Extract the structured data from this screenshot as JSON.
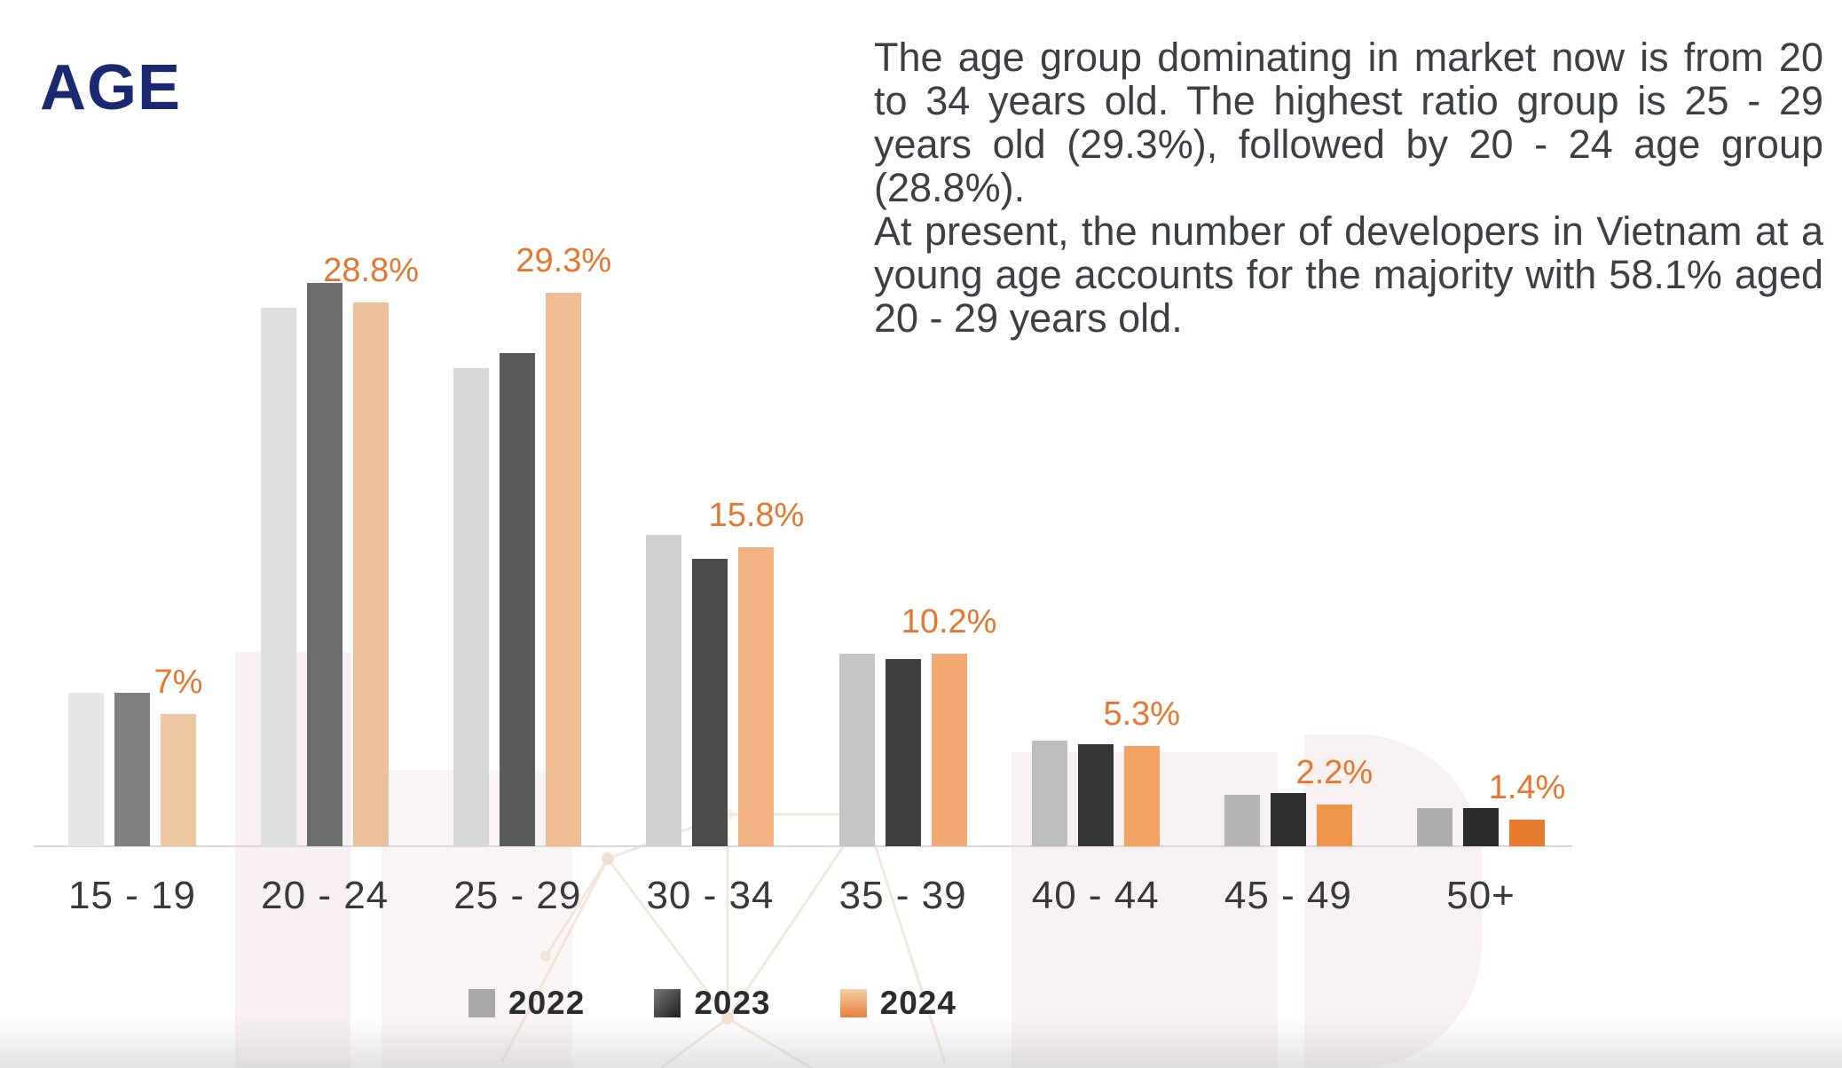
{
  "page": {
    "title": "AGE"
  },
  "description": {
    "para1": "The age group dominating in market now is from 20 to 34 years old. The highest ratio group is 25 - 29 years old (29.3%), followed by 20 - 24 age group (28.8%).",
    "para2": "At present, the number of developers in Vietnam at a young age accounts for the majority with 58.1% aged 20 - 29 years old."
  },
  "chart_data": {
    "type": "bar",
    "title": "AGE",
    "xlabel": "",
    "ylabel": "",
    "ylim": [
      0,
      32
    ],
    "grid": false,
    "legend_position": "bottom",
    "value_label_color": "#e8762c",
    "axis_label_color": "#37393c",
    "axis_line_color": "#d8d8da",
    "categories": [
      "15 - 19",
      "20 - 24",
      "25 - 29",
      "30 - 34",
      "35 - 39",
      "40 - 44",
      "45 - 49",
      "50+"
    ],
    "series": [
      {
        "name": "2022",
        "values": [
          8.1,
          28.5,
          25.3,
          16.5,
          10.2,
          5.6,
          2.7,
          2.0
        ],
        "colors": [
          "#e4e6e8",
          "#dcdee0",
          "#d5d7d9",
          "#cfd0d2",
          "#c4c5c7",
          "#bcbdbf",
          "#b5b5b7",
          "#aeaeb0"
        ]
      },
      {
        "name": "2023",
        "values": [
          8.1,
          29.8,
          26.1,
          15.2,
          9.9,
          5.4,
          2.8,
          2.0
        ],
        "colors": [
          "#7f8082",
          "#6b6c6e",
          "#5a5b5d",
          "#4a4b4d",
          "#3e3f41",
          "#353638",
          "#2e2f31",
          "#2a2b2d"
        ]
      },
      {
        "name": "2024",
        "values": [
          7.0,
          28.8,
          29.3,
          15.8,
          10.2,
          5.3,
          2.2,
          1.4
        ],
        "colors": [
          "#edc6a2",
          "#ecc09b",
          "#efbd92",
          "#f1b181",
          "#f3ab73",
          "#f2a263",
          "#f0954c",
          "#e87b2e"
        ],
        "data_labels": [
          "7%",
          "28.8%",
          "29.3%",
          "15.8%",
          "10.2%",
          "5.3%",
          "2.2%",
          "1.4%"
        ]
      }
    ]
  },
  "legend": {
    "items": [
      {
        "label": "2022",
        "swatch": "#a8a8aa"
      },
      {
        "label": "2023",
        "swatch": "linear-gradient(135deg,#77787a 0%,#1c1d1f 100%)"
      },
      {
        "label": "2024",
        "swatch": "linear-gradient(180deg,#f6cda4 0%,#e8803a 100%)"
      }
    ]
  }
}
